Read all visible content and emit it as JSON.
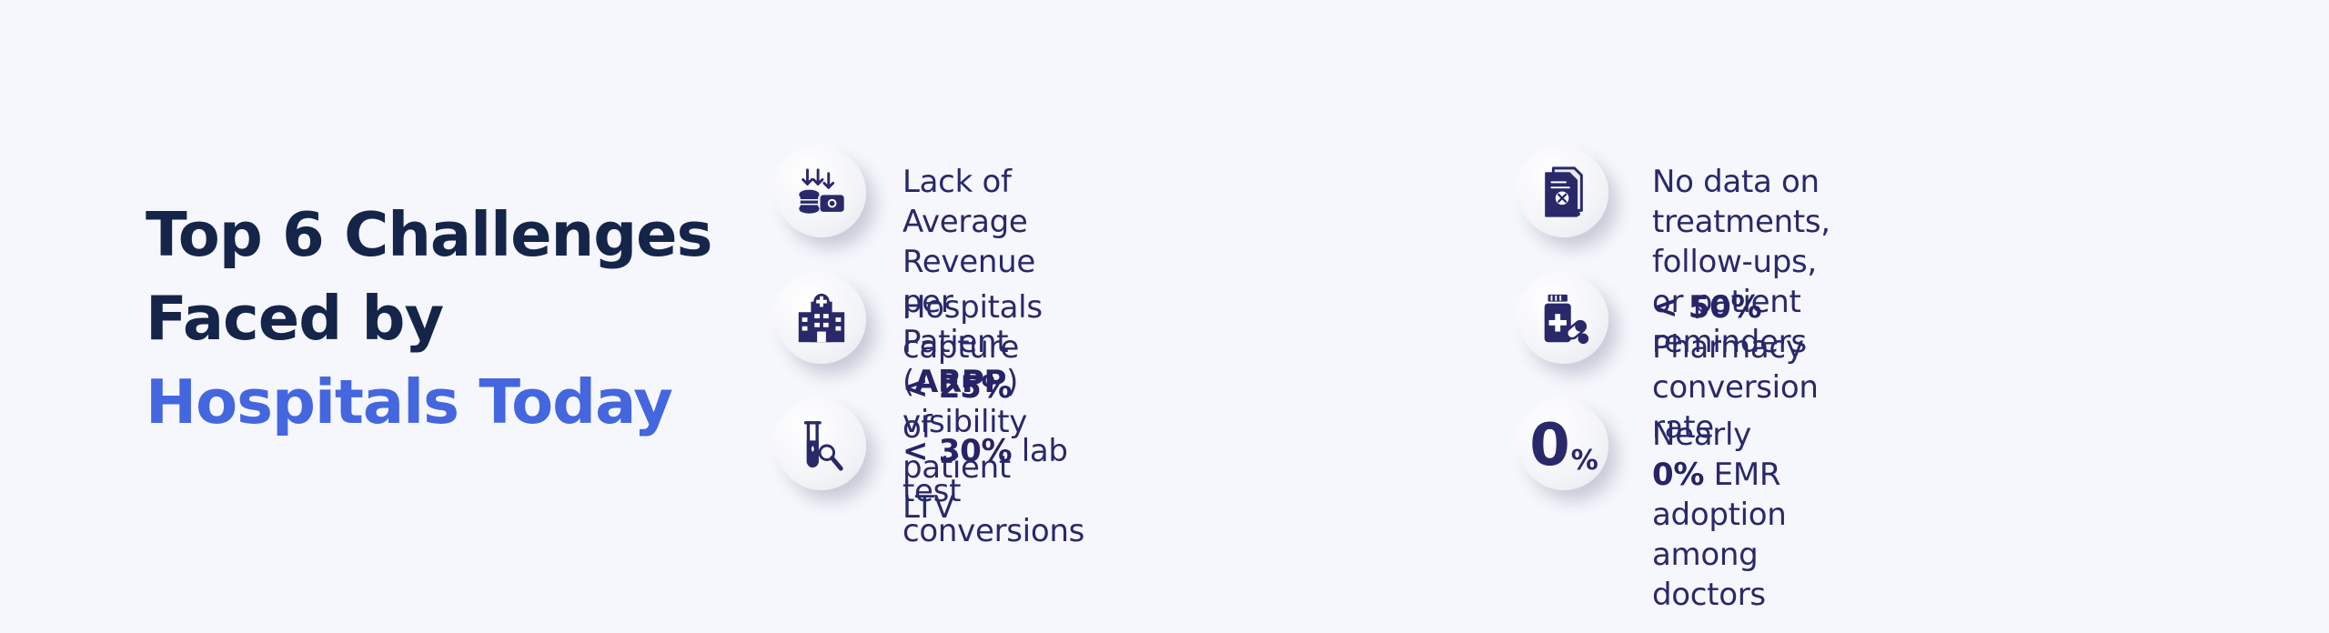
{
  "headline": {
    "line1": "Top 6 Challenges",
    "line2": "Faced by",
    "line3": "Hospitals Today"
  },
  "colors": {
    "dark": "#15254a",
    "accent": "#4466df",
    "icon_navy": "#29296a",
    "background": "#f6f7fc"
  },
  "challenges": [
    {
      "icon": "revenue-down-coins-icon",
      "pre1": "Lack of Average Revenue per",
      "pre2": "Patient (",
      "bold": "ARPP",
      "post": ") visibility"
    },
    {
      "icon": "hospital-building-icon",
      "pre": "Hospitals capture ",
      "bold": "< 25%",
      "post1": " of",
      "post2": "patient LTV"
    },
    {
      "icon": "lab-test-tube-magnifier-icon",
      "bold": "< 30%",
      "post": " lab test conversions"
    },
    {
      "icon": "document-search-icon",
      "line1": "No data on treatments, follow-ups,",
      "line2": "or patient reminders"
    },
    {
      "icon": "pharmacy-medicine-icon",
      "bold": "< 50%",
      "post": " Pharmacy conversion rate"
    },
    {
      "icon": "zero-percent-icon",
      "icon_text": "0",
      "icon_pct": "%",
      "pre": "Nearly ",
      "bold": "0%",
      "post1": " EMR adoption among",
      "post2": "doctors"
    }
  ]
}
